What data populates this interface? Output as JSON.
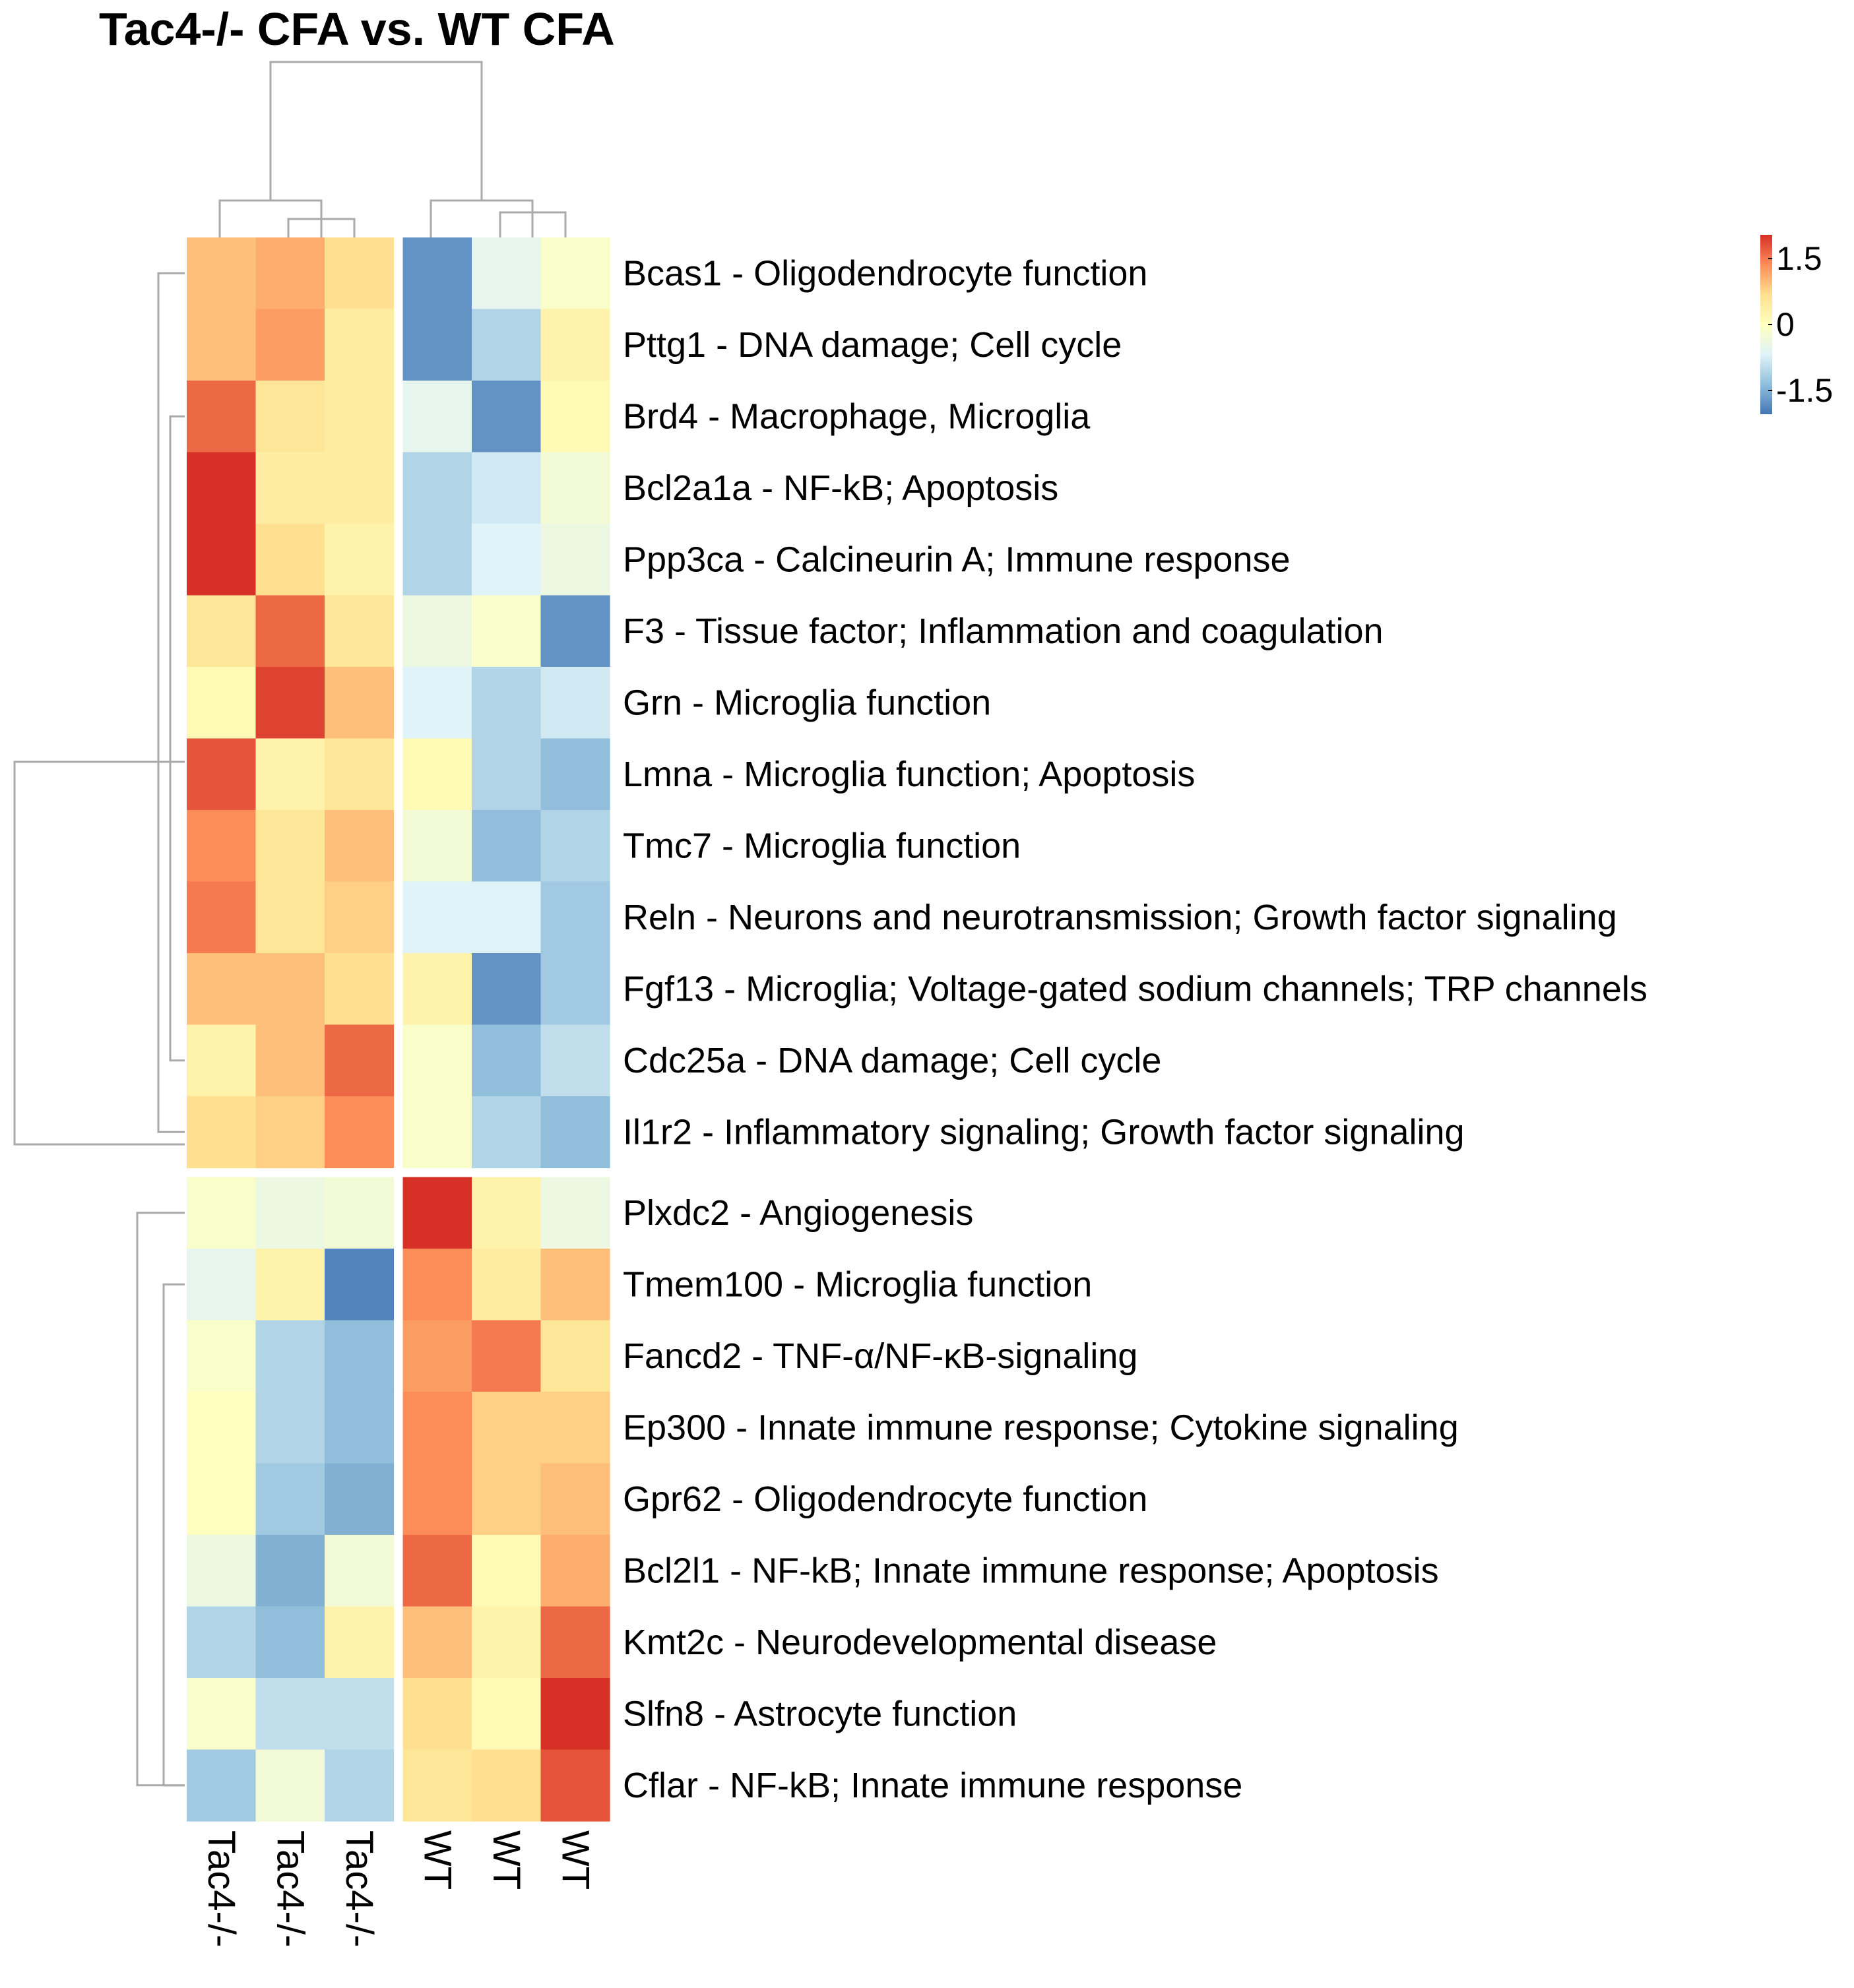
{
  "chart_data": {
    "type": "heatmap",
    "title": "Tac4-/- CFA vs. WT CFA",
    "columns": [
      "Tac4-/-",
      "Tac4-/-",
      "Tac4-/-",
      "WT",
      "WT",
      "WT"
    ],
    "column_groups": [
      3,
      3
    ],
    "row_groups": [
      13,
      9
    ],
    "rows": [
      "Bcas1 - Oligodendrocyte function",
      "Pttg1 - DNA damage; Cell cycle",
      "Brd4 - Macrophage, Microglia",
      "Bcl2a1a - NF-kB; Apoptosis",
      "Ppp3ca - Calcineurin A; Immune response",
      "F3 - Tissue factor; Inflammation and coagulation",
      "Grn - Microglia function",
      "Lmna - Microglia function; Apoptosis",
      "Tmc7 - Microglia function",
      "Reln - Neurons and neurotransmission; Growth factor signaling",
      "Fgf13 - Microglia; Voltage-gated sodium channels; TRP channels",
      "Cdc25a - DNA damage; Cell cycle",
      "Il1r2 - Inflammatory signaling; Growth factor signaling",
      "Plxdc2 - Angiogenesis",
      "Tmem100 - Microglia function",
      "Fancd2 - TNF-α/NF-κB-signaling",
      "Ep300 - Innate immune response; Cytokine signaling",
      "Gpr62 - Oligodendrocyte function",
      "Bcl2l1 - NF-kB; Innate immune response; Apoptosis",
      "Kmt2c - Neurodevelopmental disease",
      "Slfn8 - Astrocyte function",
      "Cflar - NF-kB; Innate immune response"
    ],
    "values": [
      [
        0.7,
        0.8,
        0.5,
        -1.3,
        -0.4,
        -0.1
      ],
      [
        0.7,
        0.9,
        0.3,
        -1.3,
        -0.8,
        0.2
      ],
      [
        1.2,
        0.4,
        0.3,
        -0.4,
        -1.3,
        0.1
      ],
      [
        1.5,
        0.3,
        0.3,
        -0.8,
        -0.6,
        -0.2
      ],
      [
        1.5,
        0.5,
        0.2,
        -0.8,
        -0.5,
        -0.3
      ],
      [
        0.4,
        1.2,
        0.4,
        -0.3,
        -0.1,
        -1.3
      ],
      [
        0.1,
        1.4,
        0.7,
        -0.5,
        -0.8,
        -0.6
      ],
      [
        1.3,
        0.2,
        0.4,
        0.1,
        -0.8,
        -1.0
      ],
      [
        1.0,
        0.4,
        0.7,
        -0.2,
        -1.0,
        -0.8
      ],
      [
        1.1,
        0.4,
        0.6,
        -0.5,
        -0.5,
        -0.9
      ],
      [
        0.7,
        0.7,
        0.5,
        0.2,
        -1.3,
        -0.9
      ],
      [
        0.2,
        0.7,
        1.2,
        -0.1,
        -1.0,
        -0.7
      ],
      [
        0.5,
        0.6,
        1.0,
        -0.1,
        -0.8,
        -1.0
      ],
      [
        -0.1,
        -0.3,
        -0.2,
        1.8,
        0.2,
        -0.3
      ],
      [
        -0.4,
        0.2,
        -1.4,
        1.0,
        0.3,
        0.7
      ],
      [
        -0.1,
        -0.8,
        -1.0,
        0.9,
        1.1,
        0.4
      ],
      [
        0.0,
        -0.8,
        -1.0,
        1.0,
        0.6,
        0.6
      ],
      [
        0.0,
        -0.9,
        -1.1,
        1.0,
        0.6,
        0.7
      ],
      [
        -0.3,
        -1.1,
        -0.2,
        1.2,
        0.1,
        0.8
      ],
      [
        -0.8,
        -1.0,
        0.2,
        0.7,
        0.2,
        1.2
      ],
      [
        -0.1,
        -0.7,
        -0.7,
        0.5,
        0.1,
        1.5
      ],
      [
        -0.9,
        -0.2,
        -0.8,
        0.4,
        0.5,
        1.3
      ]
    ],
    "colorbar": {
      "range": [
        -1.5,
        1.5
      ],
      "ticks": [
        "1.5",
        "0",
        "-1.5"
      ],
      "colors": [
        "#d73027",
        "#fc8d59",
        "#fee090",
        "#ffffbf",
        "#e0f3f8",
        "#91bfdb",
        "#4575b4"
      ]
    }
  }
}
